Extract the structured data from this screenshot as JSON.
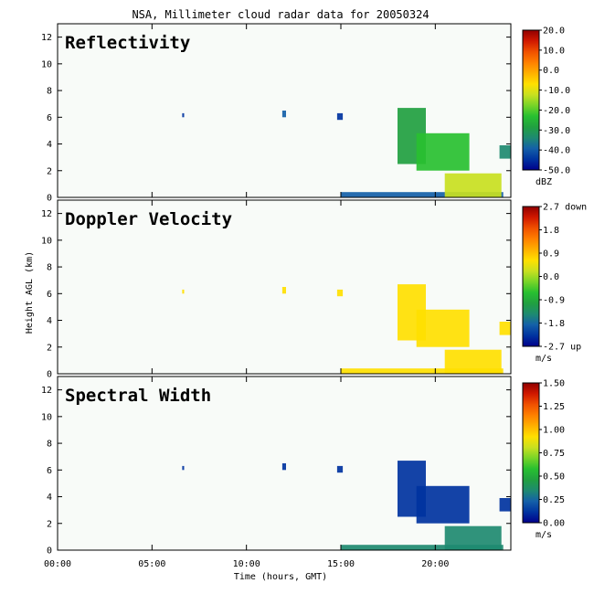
{
  "title": "NSA, Millimeter cloud radar data for 20050324",
  "xlabel": "Time (hours, GMT)",
  "ylabel": "Height AGL (km)",
  "x_ticks": [
    "00:00",
    "05:00",
    "10:00",
    "15:00",
    "20:00"
  ],
  "y_ticks": [
    "0",
    "2",
    "4",
    "6",
    "8",
    "10",
    "12"
  ],
  "colors": {
    "plot_bg": "#f8fbf8",
    "frame": "#000000",
    "colormap": [
      "#00008b",
      "#0033a0",
      "#1460a8",
      "#1e8a70",
      "#21a040",
      "#28c030",
      "#78d428",
      "#c8e020",
      "#ffe000",
      "#ffb000",
      "#ff8000",
      "#f05000",
      "#d01800",
      "#900000"
    ]
  },
  "chart_data": [
    {
      "type": "heatmap",
      "panel_label": "Reflectivity",
      "x": {
        "range": [
          0,
          24
        ],
        "tick_values": [
          0,
          5,
          10,
          15,
          20
        ]
      },
      "y": {
        "range": [
          0,
          13
        ],
        "tick_values": [
          0,
          2,
          4,
          6,
          8,
          10,
          12
        ]
      },
      "colorbar": {
        "ticks": [
          "20.0",
          "10.0",
          "0.0",
          "-10.0",
          "-20.0",
          "-30.0",
          "-40.0",
          "-50.0"
        ],
        "unit": "dBZ",
        "range": [
          -50,
          20
        ]
      },
      "features": [
        {
          "t_start": 6.6,
          "t_end": 6.7,
          "z_bottom": 6.0,
          "z_top": 6.3,
          "value": -45
        },
        {
          "t_start": 11.9,
          "t_end": 12.1,
          "z_bottom": 6.0,
          "z_top": 6.5,
          "value": -38
        },
        {
          "t_start": 14.8,
          "t_end": 15.1,
          "z_bottom": 5.8,
          "z_top": 6.3,
          "value": -42
        },
        {
          "t_start": 15.0,
          "t_end": 23.6,
          "z_bottom": 0.0,
          "z_top": 0.4,
          "value": -38
        },
        {
          "t_start": 18.0,
          "t_end": 19.5,
          "z_bottom": 2.5,
          "z_top": 6.7,
          "value": -28
        },
        {
          "t_start": 19.0,
          "t_end": 21.8,
          "z_bottom": 2.0,
          "z_top": 4.8,
          "value": -22
        },
        {
          "t_start": 20.5,
          "t_end": 23.5,
          "z_bottom": 0.0,
          "z_top": 1.8,
          "value": -10
        },
        {
          "t_start": 23.4,
          "t_end": 24.0,
          "z_bottom": 2.9,
          "z_top": 3.9,
          "value": -35
        }
      ]
    },
    {
      "type": "heatmap",
      "panel_label": "Doppler Velocity",
      "x": {
        "range": [
          0,
          24
        ],
        "tick_values": [
          0,
          5,
          10,
          15,
          20
        ]
      },
      "y": {
        "range": [
          0,
          13
        ],
        "tick_values": [
          0,
          2,
          4,
          6,
          8,
          10,
          12
        ]
      },
      "colorbar": {
        "ticks": [
          "2.7 down",
          "1.8",
          "0.9",
          "0.0",
          "-0.9",
          "-1.8",
          "-2.7 up"
        ],
        "unit": "m/s",
        "range": [
          -2.7,
          2.7
        ]
      },
      "features": [
        {
          "t_start": 6.6,
          "t_end": 6.7,
          "z_bottom": 6.0,
          "z_top": 6.3,
          "value": 0.6
        },
        {
          "t_start": 11.9,
          "t_end": 12.1,
          "z_bottom": 6.0,
          "z_top": 6.5,
          "value": 0.6
        },
        {
          "t_start": 14.8,
          "t_end": 15.1,
          "z_bottom": 5.8,
          "z_top": 6.3,
          "value": 0.6
        },
        {
          "t_start": 15.0,
          "t_end": 23.6,
          "z_bottom": 0.0,
          "z_top": 0.4,
          "value": 0.5
        },
        {
          "t_start": 18.0,
          "t_end": 19.5,
          "z_bottom": 2.5,
          "z_top": 6.7,
          "value": 0.6
        },
        {
          "t_start": 19.0,
          "t_end": 21.8,
          "z_bottom": 2.0,
          "z_top": 4.8,
          "value": 0.6
        },
        {
          "t_start": 20.5,
          "t_end": 23.5,
          "z_bottom": 0.0,
          "z_top": 1.8,
          "value": 0.7
        },
        {
          "t_start": 23.4,
          "t_end": 24.0,
          "z_bottom": 2.9,
          "z_top": 3.9,
          "value": 0.7
        }
      ]
    },
    {
      "type": "heatmap",
      "panel_label": "Spectral Width",
      "x": {
        "range": [
          0,
          24
        ],
        "tick_values": [
          0,
          5,
          10,
          15,
          20
        ]
      },
      "y": {
        "range": [
          0,
          13
        ],
        "tick_values": [
          0,
          2,
          4,
          6,
          8,
          10,
          12
        ]
      },
      "colorbar": {
        "ticks": [
          "1.50",
          "1.25",
          "1.00",
          "0.75",
          "0.50",
          "0.25",
          "0.00"
        ],
        "unit": "m/s",
        "range": [
          0,
          1.5
        ]
      },
      "features": [
        {
          "t_start": 6.6,
          "t_end": 6.7,
          "z_bottom": 6.0,
          "z_top": 6.3,
          "value": 0.1
        },
        {
          "t_start": 11.9,
          "t_end": 12.1,
          "z_bottom": 6.0,
          "z_top": 6.5,
          "value": 0.1
        },
        {
          "t_start": 14.8,
          "t_end": 15.1,
          "z_bottom": 5.8,
          "z_top": 6.3,
          "value": 0.1
        },
        {
          "t_start": 15.0,
          "t_end": 23.6,
          "z_bottom": 0.0,
          "z_top": 0.4,
          "value": 0.4
        },
        {
          "t_start": 18.0,
          "t_end": 19.5,
          "z_bottom": 2.5,
          "z_top": 6.7,
          "value": 0.1
        },
        {
          "t_start": 19.0,
          "t_end": 21.8,
          "z_bottom": 2.0,
          "z_top": 4.8,
          "value": 0.12
        },
        {
          "t_start": 20.5,
          "t_end": 23.5,
          "z_bottom": 0.0,
          "z_top": 1.8,
          "value": 0.35
        },
        {
          "t_start": 23.4,
          "t_end": 24.0,
          "z_bottom": 2.9,
          "z_top": 3.9,
          "value": 0.15
        }
      ]
    }
  ]
}
